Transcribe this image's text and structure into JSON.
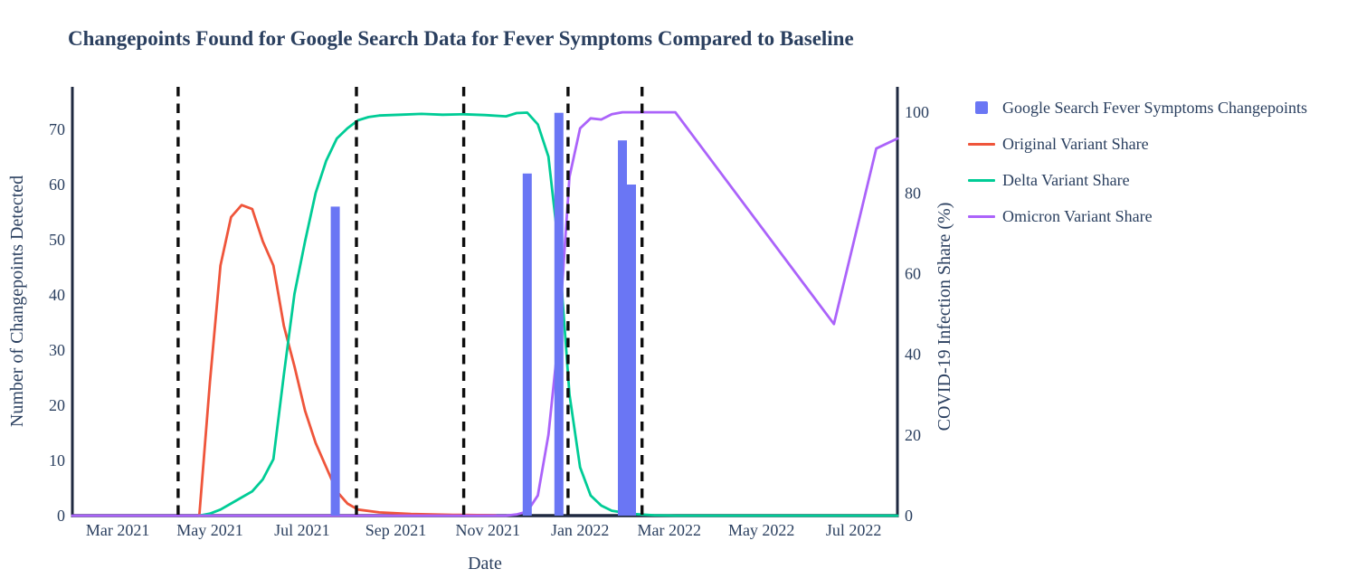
{
  "chart_data": {
    "type": "mixed-bar-line",
    "title": "Changepoints Found for Google Search Data for Fever Symptoms Compared to Baseline",
    "xlabel": "Date",
    "ylabel_left": "Number of Changepoints Detected",
    "ylabel_right": "COVID-19 Infection Share (%)",
    "text_color": "#2a3f5f",
    "axis_color": "#1f2940",
    "x_domain": [
      "2021-01-30",
      "2022-07-30"
    ],
    "yleft": {
      "min": 0,
      "max": 77.7,
      "ticks": [
        0,
        10,
        20,
        30,
        40,
        50,
        60,
        70
      ]
    },
    "yright": {
      "min": 0,
      "max": 106.3,
      "ticks": [
        0,
        20,
        40,
        60,
        80,
        100
      ]
    },
    "x_ticks": [
      {
        "label": "Mar 2021",
        "date": "2021-03-01"
      },
      {
        "label": "May 2021",
        "date": "2021-05-01"
      },
      {
        "label": "Jul 2021",
        "date": "2021-07-01"
      },
      {
        "label": "Sep 2021",
        "date": "2021-09-01"
      },
      {
        "label": "Nov 2021",
        "date": "2021-11-01"
      },
      {
        "label": "Jan 2022",
        "date": "2022-01-01"
      },
      {
        "label": "Mar 2022",
        "date": "2022-03-01"
      },
      {
        "label": "May 2022",
        "date": "2022-05-01"
      },
      {
        "label": "Jul 2022",
        "date": "2022-07-01"
      }
    ],
    "bars": {
      "name": "Google Search Fever Symptoms Changepoints",
      "color": "#6a76f4",
      "axis": "left",
      "bar_width_days": 6,
      "points": [
        {
          "date": "2021-07-23",
          "value": 56
        },
        {
          "date": "2021-11-27",
          "value": 62
        },
        {
          "date": "2021-12-18",
          "value": 73
        },
        {
          "date": "2022-01-29",
          "value": 68
        },
        {
          "date": "2022-02-04",
          "value": 60
        }
      ]
    },
    "series": [
      {
        "name": "Original Variant Share",
        "color": "#ef553b",
        "axis": "right",
        "points": [
          [
            "2021-04-24",
            0
          ],
          [
            "2021-05-01",
            33
          ],
          [
            "2021-05-08",
            62
          ],
          [
            "2021-05-15",
            74
          ],
          [
            "2021-05-22",
            77
          ],
          [
            "2021-05-29",
            76
          ],
          [
            "2021-06-05",
            68
          ],
          [
            "2021-06-12",
            62
          ],
          [
            "2021-06-19",
            47
          ],
          [
            "2021-06-26",
            37
          ],
          [
            "2021-07-03",
            26
          ],
          [
            "2021-07-10",
            18
          ],
          [
            "2021-07-17",
            12
          ],
          [
            "2021-07-24",
            6
          ],
          [
            "2021-07-31",
            3
          ],
          [
            "2021-08-07",
            1.5
          ],
          [
            "2021-08-21",
            0.8
          ],
          [
            "2021-09-11",
            0.4
          ],
          [
            "2021-10-09",
            0.2
          ],
          [
            "2021-11-06",
            0.1
          ]
        ]
      },
      {
        "name": "Delta Variant Share",
        "color": "#00cc96",
        "axis": "right",
        "points": [
          [
            "2021-04-24",
            0
          ],
          [
            "2021-05-01",
            0.5
          ],
          [
            "2021-05-08",
            1.5
          ],
          [
            "2021-05-15",
            3
          ],
          [
            "2021-05-22",
            4.5
          ],
          [
            "2021-05-29",
            6
          ],
          [
            "2021-06-05",
            9
          ],
          [
            "2021-06-12",
            14
          ],
          [
            "2021-06-19",
            35
          ],
          [
            "2021-06-26",
            55
          ],
          [
            "2021-07-03",
            68
          ],
          [
            "2021-07-10",
            80
          ],
          [
            "2021-07-17",
            88
          ],
          [
            "2021-07-24",
            93.5
          ],
          [
            "2021-07-31",
            96
          ],
          [
            "2021-08-07",
            98
          ],
          [
            "2021-08-14",
            98.8
          ],
          [
            "2021-08-21",
            99.2
          ],
          [
            "2021-09-04",
            99.4
          ],
          [
            "2021-09-18",
            99.6
          ],
          [
            "2021-10-02",
            99.4
          ],
          [
            "2021-10-16",
            99.5
          ],
          [
            "2021-10-30",
            99.3
          ],
          [
            "2021-11-13",
            99.0
          ],
          [
            "2021-11-20",
            99.8
          ],
          [
            "2021-11-27",
            99.9
          ],
          [
            "2021-12-04",
            97
          ],
          [
            "2021-12-11",
            89
          ],
          [
            "2021-12-18",
            66
          ],
          [
            "2021-12-25",
            30
          ],
          [
            "2022-01-01",
            12
          ],
          [
            "2022-01-08",
            5
          ],
          [
            "2022-01-15",
            2.5
          ],
          [
            "2022-01-22",
            1.2
          ],
          [
            "2022-02-05",
            0.4
          ],
          [
            "2022-02-19",
            0.1
          ],
          [
            "2022-03-05",
            0
          ],
          [
            "2022-07-30",
            0
          ]
        ]
      },
      {
        "name": "Omicron Variant Share",
        "color": "#ab63fa",
        "axis": "right",
        "points": [
          [
            "2021-01-30",
            0
          ],
          [
            "2021-11-13",
            0
          ],
          [
            "2021-11-20",
            0.3
          ],
          [
            "2021-11-27",
            1
          ],
          [
            "2021-12-04",
            5
          ],
          [
            "2021-12-11",
            20
          ],
          [
            "2021-12-18",
            45
          ],
          [
            "2021-12-25",
            84
          ],
          [
            "2022-01-01",
            96
          ],
          [
            "2022-01-08",
            98.5
          ],
          [
            "2022-01-15",
            98.2
          ],
          [
            "2022-01-22",
            99.5
          ],
          [
            "2022-01-29",
            100
          ],
          [
            "2022-03-05",
            100
          ],
          [
            "2022-06-18",
            47.5
          ],
          [
            "2022-07-16",
            91
          ],
          [
            "2022-07-30",
            93.5
          ]
        ]
      }
    ],
    "dashed_vlines": {
      "color": "#0d0d0d",
      "dates": [
        "2021-04-10",
        "2021-08-06",
        "2021-10-16",
        "2021-12-24",
        "2022-02-11"
      ]
    },
    "legend": {
      "items": [
        {
          "label": "Google Search Fever Symptoms Changepoints",
          "marker": "square",
          "color": "#6a76f4"
        },
        {
          "label": "Original Variant Share",
          "marker": "line",
          "color": "#ef553b"
        },
        {
          "label": "Delta Variant Share",
          "marker": "line",
          "color": "#00cc96"
        },
        {
          "label": "Omicron Variant Share",
          "marker": "line",
          "color": "#ab63fa"
        }
      ]
    }
  }
}
